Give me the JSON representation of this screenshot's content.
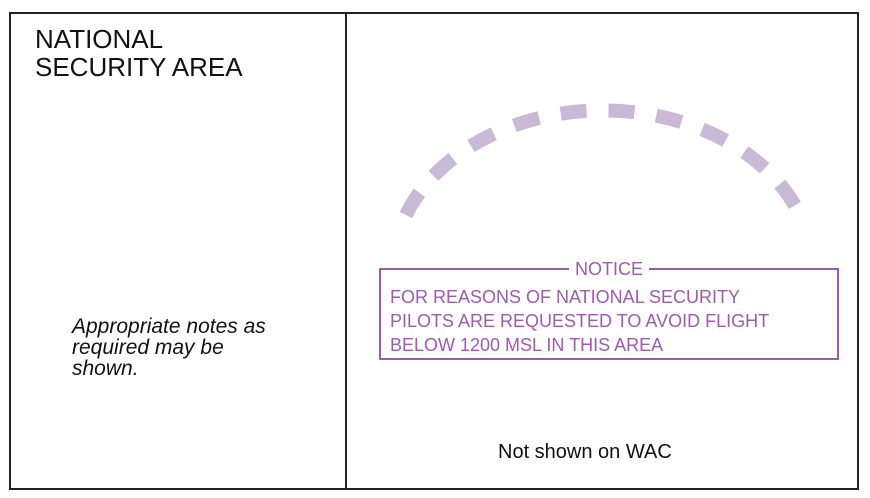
{
  "legend": {
    "title_lines": [
      "NATIONAL",
      "SECURITY AREA"
    ],
    "notes_lines": [
      "Appropriate notes as",
      "required may be",
      "shown."
    ],
    "notice": {
      "title": "NOTICE",
      "lines": [
        "FOR REASONS OF NATIONAL SECURITY",
        "PILOTS ARE REQUESTED TO AVOID FLIGHT",
        "BELOW 1200  MSL IN THIS AREA"
      ]
    },
    "footer_note": "Not shown on WAC",
    "colors": {
      "nsa_boundary": "#c9b8d6",
      "notice_purple": "#9b5ca8",
      "border": "#222222"
    }
  }
}
